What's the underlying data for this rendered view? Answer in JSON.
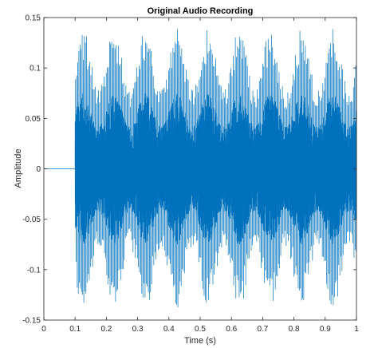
{
  "chart_data": {
    "type": "line",
    "title": "Original Audio Recording",
    "xlabel": "Time (s)",
    "ylabel": "Amplitude",
    "xlim": [
      0,
      1
    ],
    "ylim": [
      -0.15,
      0.15
    ],
    "xticks": [
      0,
      0.1,
      0.2,
      0.3,
      0.4,
      0.5,
      0.6,
      0.7,
      0.8,
      0.9,
      1
    ],
    "xtick_labels": [
      "0",
      "0.1",
      "0.2",
      "0.3",
      "0.4",
      "0.5",
      "0.6",
      "0.7",
      "0.8",
      "0.9",
      "1"
    ],
    "yticks": [
      -0.15,
      -0.1,
      -0.05,
      0,
      0.05,
      0.1,
      0.15
    ],
    "ytick_labels": [
      "-0.15",
      "-0.1",
      "-0.05",
      "0",
      "0.05",
      "0.1",
      "0.15"
    ],
    "grid": false,
    "line_color": "#0072BD",
    "signal": {
      "silent_until": 0.1,
      "peak_amplitude": 0.14,
      "core_amplitude": 0.075,
      "envelope_period": 0.1
    }
  }
}
